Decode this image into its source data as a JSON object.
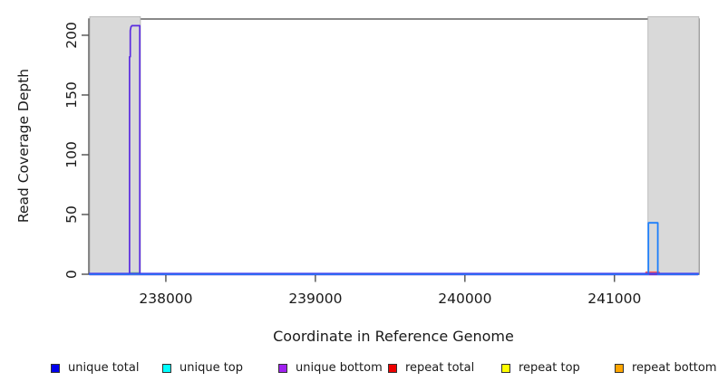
{
  "chart_data": {
    "type": "line",
    "title": "",
    "xlabel": "Coordinate in Reference Genome",
    "ylabel": "Read Coverage Depth",
    "xlim": [
      237485,
      241565
    ],
    "ylim": [
      0,
      213.6
    ],
    "x_ticks": [
      238000,
      239000,
      240000,
      241000
    ],
    "y_ticks": [
      0,
      50,
      100,
      150,
      200
    ],
    "grid": false,
    "shaded_regions": [
      {
        "name": "left-masked-region",
        "x_start": 237487,
        "x_end": 237830
      },
      {
        "name": "right-masked-region",
        "x_start": 241224,
        "x_end": 241564
      }
    ],
    "series": [
      {
        "name": "repeat bottom",
        "legend_color": "#ffa500",
        "draw_color": "#e8a23c",
        "width": 1.2,
        "points": [
          [
            237485,
            0
          ],
          [
            241564,
            0
          ]
        ]
      },
      {
        "name": "repeat top",
        "legend_color": "#ffff00",
        "draw_color": "#8ed08e",
        "width": 2.2,
        "points": [
          [
            237763,
            0
          ],
          [
            237763,
            1
          ],
          [
            237824,
            1
          ],
          [
            237824,
            0
          ]
        ]
      },
      {
        "name": "repeat total",
        "legend_color": "#ee0000",
        "draw_color": "#ff5c5c",
        "width": 2.2,
        "points": [
          [
            241212,
            0
          ],
          [
            241212,
            1.5
          ],
          [
            241297,
            1.5
          ],
          [
            241297,
            0
          ]
        ]
      },
      {
        "name": "unique bottom",
        "legend_color": "#a020f0",
        "draw_color": "#5a2be0",
        "width": 1.7,
        "points": [
          [
            237485,
            0
          ],
          [
            237757,
            0
          ],
          [
            237757,
            182
          ],
          [
            237762,
            182
          ],
          [
            237762,
            204
          ],
          [
            237767,
            207
          ],
          [
            237773,
            208
          ],
          [
            237826,
            208
          ],
          [
            237826,
            0
          ],
          [
            241564,
            0
          ]
        ]
      },
      {
        "name": "unique top",
        "legend_color": "#00ffff",
        "draw_color": "#1e7ffb",
        "width": 1.8,
        "points": [
          [
            237485,
            0
          ],
          [
            241227,
            0
          ],
          [
            241227,
            43
          ],
          [
            241290,
            43
          ],
          [
            241290,
            0
          ],
          [
            241564,
            0
          ]
        ]
      },
      {
        "name": "unique total",
        "legend_color": "#0000ee",
        "draw_color": "#4242ee",
        "width": 1.4,
        "points": [
          [
            237485,
            0
          ],
          [
            241564,
            0
          ]
        ]
      }
    ],
    "legend": {
      "position": "bottom",
      "items": [
        {
          "label": "unique total",
          "color": "#0000ee"
        },
        {
          "label": "unique top",
          "color": "#00ffff"
        },
        {
          "label": "unique bottom",
          "color": "#a020f0"
        },
        {
          "label": "repeat total",
          "color": "#ee0000"
        },
        {
          "label": "repeat top",
          "color": "#ffff00"
        },
        {
          "label": "repeat bottom",
          "color": "#ffa500"
        }
      ]
    }
  },
  "colors": {
    "shaded_region_fill": "#d9d9d9",
    "shaded_region_border": "#b0b0b0",
    "box_border": "#555555",
    "axis_text": "#1a1a1a",
    "baseline_shadow": "#c7b0f0"
  }
}
